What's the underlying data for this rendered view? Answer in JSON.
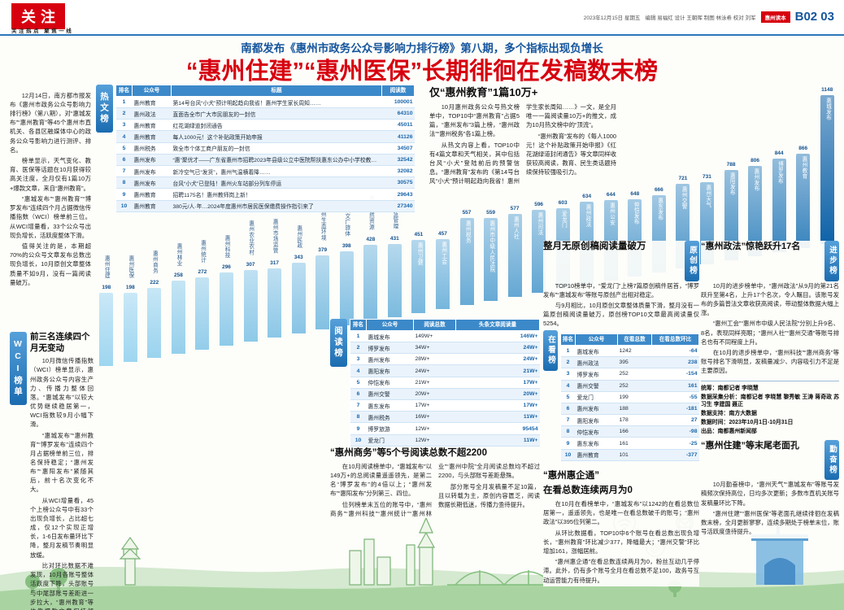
{
  "meta": {
    "section_tag": "关注",
    "section_tagline": "关注热点 聚焦一线",
    "date_line": "2023年12月15日 星期五",
    "staff_line": "编辑 易福红 设计 王朝晖 制图 林泳希 校对 刘军",
    "edition_badge": "惠州读本",
    "page_number": "B02 03"
  },
  "headline": {
    "kicker": "南都发布《惠州市政务公众号影响力排行榜》第八期，多个指标出现负增长",
    "title": "“惠州住建”“惠州医保”长期徘徊在发稿数末榜"
  },
  "intro": {
    "paragraphs": [
      "12月14日，南方都市报发布《惠州市政务公众号影响力排行榜》（第八期），对“惠城发布”“惠州教育”等45个惠州市直机关、各县区融媒体中心的政务公众号影响力进行测评、排名。",
      "榜单显示，天气变化、教育、医保等话题在10月获得较高关注度，全月仅有1篇10万+爆款文章，来自“惠州教育”。",
      "“惠城发布”“惠州教育”“博罗发布”连续四个月占据微信传播指数（WCI）榜单前三位。从WCI增量看，33个公众号出现负增长，活跃度整体下滑。",
      "值得关注的是，本期超70%的公众号文章发布总数出现负增长，10月原创文章整体质量不如9月，没有一篇阅读量破万。"
    ]
  },
  "hot_list": {
    "tab": "热文榜",
    "columns": [
      "排名",
      "公众号",
      "标题",
      "阅读数"
    ],
    "rows": [
      [
        "1",
        "惠州教育",
        "第14号台风“小犬”预计明起趋向我省！惠州学生家长周知……",
        "100001"
      ],
      [
        "2",
        "惠州政法",
        "直面告全市广大市民朋友的一封信",
        "64310"
      ],
      [
        "3",
        "惠州教育",
        "红花湖绿道封闭通告",
        "45011"
      ],
      [
        "4",
        "惠州教育",
        "每人1000元！这个补贴政策开始申报",
        "41126"
      ],
      [
        "5",
        "惠州税务",
        "致全市个体工商户朋友的一封信",
        "34507"
      ],
      [
        "6",
        "惠州发布",
        "“惠”聚优才——广东省惠州市招聘2023年县级公立中医院帮扶惠东公办中小学校教师公告",
        "32542"
      ],
      [
        "7",
        "惠州发布",
        "新冷空气已“发货”，惠州气温横着降……",
        "32082"
      ],
      [
        "8",
        "惠州发布",
        "台风“小犬”已登陆！惠州火车站部分列车停运",
        "30575"
      ],
      [
        "9",
        "惠州教育",
        "招聘1175名！惠州教师岗上新！",
        "29643"
      ],
      [
        "10",
        "惠州教育",
        "380元/人·年…2024年度惠州市居民医保缴费操作指引来了",
        "27340"
      ]
    ]
  },
  "edu_section": {
    "heading": "仅“惠州教育”1篇10万+",
    "paragraphs": [
      "10月惠州政务公众号热文榜单中，TOP10中“惠州教育”占据5篇，“惠州发布”3篇上榜，“惠州政法”“惠州税务”各1篇上榜。",
      "从热文内容上看，TOP10中有4篇文章和天气相关，其中包括台风“小犬”登陆前后的预警信息。“惠州教育”发布的《第14号台风“小犬”预计明起趋向我省！惠州学生家长周知……》一文，是全月唯一一篇阅读量10万+的推文，成为10月热文榜中的“顶流”。",
      "“惠州教育”发布的《每人1000元！这个补贴政策开始申报》《红花湖绿道封闭通告》等文章同样收获较高阅读，教育、民生类话题持续保持较强吸引力。"
    ]
  },
  "wci_section": {
    "tab": "WCI榜单",
    "heading": "前三名连续四个月无变动",
    "paragraphs": [
      "10月微信传播指数（WCI）榜单显示，惠州政务公众号内容生产力、传播力整体回落。“惠城发布”以较大优势继续稳居第一，WCI指数较9月小幅下滑。",
      "“惠城发布”“惠州教育”“博罗发布”连续四个月占据榜单前三位，排名保持稳定；“惠州发布”“惠阳发布”紧随其后，前十名次变化不大。",
      "从WCI增量看，45个上榜公众号中有33个出现负增长，占比超七成，仅12个实现正增长，1-6日发布量环比下降，整月发稿节奏明显放缓。",
      "比对环比数据不难发现，10月各账号整体活跃度下降，头部账号与中尾部账号差距进一步拉大，“惠州教育”等依靠爆款文章保持领先，多数账号仍需在选题和更新频次上发力。"
    ]
  },
  "read_list": {
    "tab": "阅读榜",
    "columns": [
      "排名",
      "公众号",
      "阅读总数",
      "头条文章阅读量"
    ],
    "rows": [
      [
        "1",
        "惠城发布",
        "149W+",
        "146W+"
      ],
      [
        "2",
        "博罗发布",
        "34W+",
        "24W+"
      ],
      [
        "3",
        "惠州发布",
        "28W+",
        "24W+"
      ],
      [
        "4",
        "惠阳发布",
        "24W+",
        "21W+"
      ],
      [
        "5",
        "仲恺发布",
        "21W+",
        "17W+"
      ],
      [
        "6",
        "惠州交警",
        "20W+",
        "20W+"
      ],
      [
        "7",
        "惠东发布",
        "17W+",
        "17W+"
      ],
      [
        "8",
        "惠州税务",
        "16W+",
        "11W+"
      ],
      [
        "9",
        "博罗旅游",
        "12W+",
        "95454"
      ],
      [
        "10",
        "爱龙门",
        "12W+",
        "11W+"
      ]
    ]
  },
  "shangwu_section": {
    "heading": "“惠州商务”等5个号阅读总数不超2200",
    "paragraphs": [
      "在10月阅读榜单中，“惠城发布”以149万+的总阅读量遥遥领先，是第二名“博罗发布”的4倍以上；“惠州发布”“惠阳发布”分列第三、四位。",
      "位列榜单末五位的账号中，“惠州商务”“惠州科技”“惠州统计”“惠州林业”“惠州中院”全月阅读总数均不超过2200，与头部账号差距悬殊。",
      "部分账号全月发稿量不足10篇，且以转载为主，原创内容匮乏，阅读数据长期低迷，传播力亟待提升。"
    ]
  },
  "yuanchuang_section": {
    "tab": "原创榜",
    "heading": "整月无原创稿阅读量破万",
    "paragraphs": [
      "TOP10榜单中，“爱龙门”上榜7篇原创稿件居首，“博罗发布”“惠城发布”等账号原创产出相对稳定。",
      "与9月相比，10月原创文章整体质量下滑，整月没有一篇原创稿阅读量破万，原创榜TOP10文章最高阅读量仅5254。"
    ]
  },
  "zaikan_list": {
    "tab": "在看榜",
    "columns": [
      "排名",
      "公众号",
      "在看总数",
      "在看总数环比"
    ],
    "rows": [
      [
        "1",
        "惠城发布",
        "1242",
        "-64"
      ],
      [
        "2",
        "惠州政法",
        "395",
        "238"
      ],
      [
        "3",
        "博罗发布",
        "252",
        "-154"
      ],
      [
        "4",
        "惠州交警",
        "252",
        "161"
      ],
      [
        "5",
        "爱龙门",
        "199",
        "-55"
      ],
      [
        "6",
        "惠州发布",
        "188",
        "-181"
      ],
      [
        "7",
        "惠阳发布",
        "178",
        "27"
      ],
      [
        "8",
        "仲恺发布",
        "166",
        "-98"
      ],
      [
        "9",
        "惠东发布",
        "161",
        "-25"
      ],
      [
        "10",
        "惠州教育",
        "101",
        "-377"
      ]
    ]
  },
  "huiqitong_section": {
    "heading1": "“惠州惠企通”",
    "heading2": "在看总数连续两月为0",
    "paragraphs": [
      "在10月在看榜单中，“惠城发布”以1242的在看总数位居第一，遥遥领先，也是唯一在看总数破千的账号；“惠州政法”以395位列第二。",
      "从环比数据看，TOP10中6个账号在看总数出现负增长，“惠州教育”环比减少377，降幅最大；“惠州交警”环比增加161，涨幅居前。",
      "“惠州惠企通”在看总数连续两月为0，粉丝互动几乎停滞。此外，仍有多个账号全月在看总数不足100，政务号互动运营能力有待提升。"
    ]
  },
  "jinbu_section": {
    "tab": "进步榜",
    "heading": "“惠州政法”惊艳跃升17名",
    "paragraphs": [
      "10月的进步榜单中，“惠州政法”从9月的第21名跃升至第4名，上升17个名次，令人瞩目。该账号发布的多篇普法文章收获高阅读，带动整体数据大幅上涨。",
      "“惠州工会”“惠州市中级人民法院”分别上升9名、8名，表现同样亮眼；“惠州人社”“惠州交通”等账号排名也有不同程度上升。",
      "在10月的退步榜单中，“惠州科技”“惠州商务”等账号排名下滑明显，发稿量减少、内容吸引力不足是主要原因。"
    ]
  },
  "qinfen_section": {
    "tab": "勤奋榜",
    "heading": "“惠州住建”等末尾老面孔",
    "paragraphs": [
      "10月勤奋榜中，“惠州天气”“惠城发布”等账号发稿频次保持高位，日均多次更新；多数市直机关账号发稿量环比下降。",
      "“惠州住建”“惠州医保”等老面孔继续徘徊在发稿数末榜，全月更新寥寥，连续多期处于榜单末位，账号活跃度亟待提升。"
    ]
  },
  "credits": {
    "lines": [
      "统筹：南都记者 李晓慧",
      "数据采集分析：南都记者 李晓慧 黎秀敏 王涛 蒋奇政 苏习生 李建国 聂正",
      "数据支持：南方大数据",
      "数据时间：2023年10月1日-10月31日",
      "出品：南都惠州新闻部"
    ]
  },
  "chart_data": {
    "type": "bar",
    "title": "",
    "xlabel": "",
    "ylabel": "",
    "ylim": [
      0,
      1200
    ],
    "legend": false,
    "grid": false,
    "categories": [
      "惠州住建",
      "惠州医保",
      "惠州商务",
      "惠州林业",
      "惠州统计",
      "惠州科技",
      "惠州农业农村",
      "惠州市场监管",
      "惠州民政",
      "惠州生态环境",
      "惠州文广旅体",
      "惠州自然资源",
      "惠州应急管理",
      "惠州卫健",
      "惠州工会",
      "惠州税务",
      "惠州市中级人民法院",
      "惠州人社",
      "惠州司法",
      "爱龙门",
      "惠州政法",
      "惠州公安",
      "仲恺发布",
      "惠东发布",
      "惠州交警",
      "惠州天气",
      "惠阳发布",
      "惠州发布",
      "博罗发布",
      "惠州教育",
      "惠城发布"
    ],
    "values": [
      198,
      198,
      222,
      258,
      272,
      296,
      307,
      317,
      343,
      379,
      398,
      428,
      431,
      451,
      457,
      557,
      559,
      577,
      596,
      603,
      634,
      644,
      648,
      666,
      721,
      731,
      788,
      806,
      844,
      866,
      1148
    ]
  },
  "decor": {
    "icons": [
      "wifi-icon",
      "at-icon",
      "envelope-icon"
    ]
  },
  "colors": {
    "masthead_red": "#d7000f",
    "headline_red": "#d7000f",
    "accent_blue": "#2b76ba",
    "table_header_blue": "#3c89c9",
    "bar_light": "#9ed6f0",
    "bar_dark": "#0d62a8",
    "skyline_green": "#a9d4a1"
  }
}
